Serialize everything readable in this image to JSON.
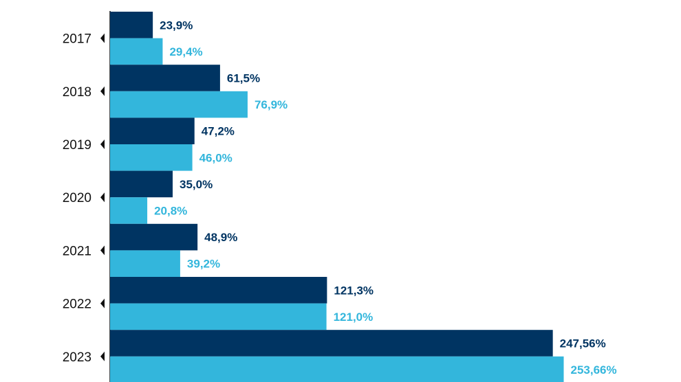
{
  "chart_data": {
    "type": "bar",
    "orientation": "horizontal",
    "categories": [
      "2017",
      "2018",
      "2019",
      "2020",
      "2021",
      "2022",
      "2023"
    ],
    "series": [
      {
        "color": "#003462",
        "values": [
          23.9,
          61.5,
          47.2,
          35.0,
          48.9,
          121.3,
          247.56
        ],
        "labels": [
          "23,9%",
          "61,5%",
          "47,2%",
          "35,0%",
          "48,9%",
          "121,3%",
          "247,56%"
        ]
      },
      {
        "color": "#33b6dc",
        "values": [
          29.4,
          76.9,
          46.0,
          20.8,
          39.2,
          121.0,
          253.66
        ],
        "labels": [
          "29,4%",
          "76,9%",
          "46,0%",
          "20,8%",
          "39,2%",
          "121,0%",
          "253,66%"
        ]
      }
    ],
    "xlim": [
      0,
      253.66
    ],
    "grid": false,
    "axis_color": "#111111"
  }
}
